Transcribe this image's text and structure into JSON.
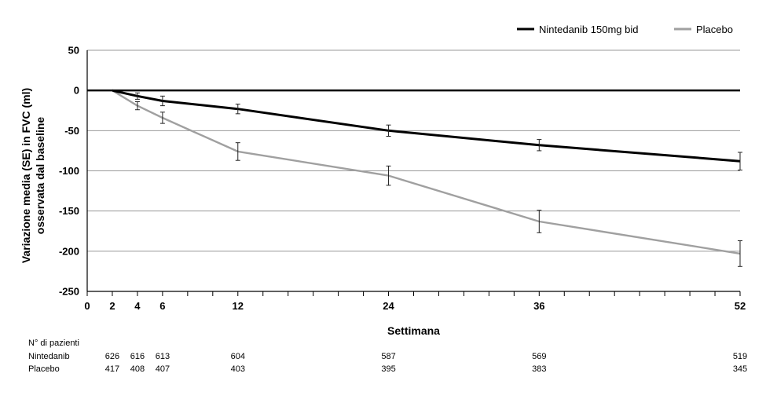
{
  "chart_data": {
    "type": "line",
    "xlabel": "Settimana",
    "ylabel_lines": [
      "Variazione media (SE) in FVC (ml)",
      "osservata dal baseline"
    ],
    "x_ticks": [
      0,
      2,
      4,
      6,
      12,
      24,
      36,
      52
    ],
    "xlim": [
      0,
      52
    ],
    "ylim": [
      -250,
      50
    ],
    "y_ticks": [
      50,
      0,
      -50,
      -100,
      -150,
      -200,
      -250
    ],
    "grid": "horizontal",
    "legend_position": "top-right",
    "series": [
      {
        "name": "Nintedanib 150mg bid",
        "color": "#000000",
        "x": [
          2,
          4,
          6,
          12,
          24,
          36,
          52
        ],
        "y": [
          0,
          -7,
          -13,
          -23,
          -50,
          -68,
          -88
        ],
        "err": [
          0,
          4,
          6,
          6,
          7,
          7,
          11
        ]
      },
      {
        "name": "Placebo",
        "color": "#a0a0a0",
        "x": [
          2,
          4,
          6,
          12,
          24,
          36,
          52
        ],
        "y": [
          0,
          -19,
          -34,
          -76,
          -106,
          -163,
          -203
        ],
        "err": [
          0,
          5,
          7,
          11,
          12,
          14,
          16
        ]
      }
    ]
  },
  "patients_table": {
    "header": "N° di pazienti",
    "x": [
      2,
      4,
      6,
      12,
      24,
      36,
      52
    ],
    "rows": [
      {
        "label": "Nintedanib",
        "values": [
          "626",
          "616",
          "613",
          "604",
          "587",
          "569",
          "519"
        ]
      },
      {
        "label": "Placebo",
        "values": [
          "417",
          "408",
          "407",
          "403",
          "395",
          "383",
          "345"
        ]
      }
    ]
  }
}
